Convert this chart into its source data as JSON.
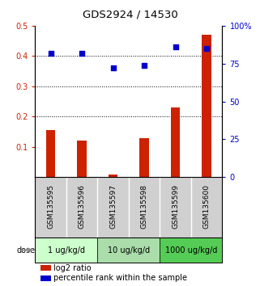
{
  "title": "GDS2924 / 14530",
  "samples": [
    "GSM135595",
    "GSM135596",
    "GSM135597",
    "GSM135598",
    "GSM135599",
    "GSM135600"
  ],
  "log2_ratio": [
    0.155,
    0.122,
    0.01,
    0.13,
    0.23,
    0.47
  ],
  "percentile_rank": [
    82,
    82,
    72,
    74,
    86,
    85
  ],
  "doses": [
    {
      "label": "1 ug/kg/d",
      "color": "#ccffcc"
    },
    {
      "label": "10 ug/kg/d",
      "color": "#aaddaa"
    },
    {
      "label": "1000 ug/kg/d",
      "color": "#55cc55"
    }
  ],
  "bar_color": "#cc2200",
  "scatter_color": "#0000cc",
  "ylim_left": [
    0.0,
    0.5
  ],
  "ylim_right": [
    0,
    100
  ],
  "yticks_left": [
    0.1,
    0.2,
    0.3,
    0.4,
    0.5
  ],
  "yticks_right": [
    0,
    25,
    50,
    75,
    100
  ],
  "ytick_labels_left": [
    "0.1",
    "0.2",
    "0.3",
    "0.4",
    "0.5"
  ],
  "ytick_labels_right": [
    "0",
    "25",
    "50",
    "75",
    "100%"
  ],
  "hlines": [
    0.2,
    0.3,
    0.4
  ],
  "legend_red": "log2 ratio",
  "legend_blue": "percentile rank within the sample",
  "dose_label": "dose",
  "sample_area_color": "#d0d0d0"
}
